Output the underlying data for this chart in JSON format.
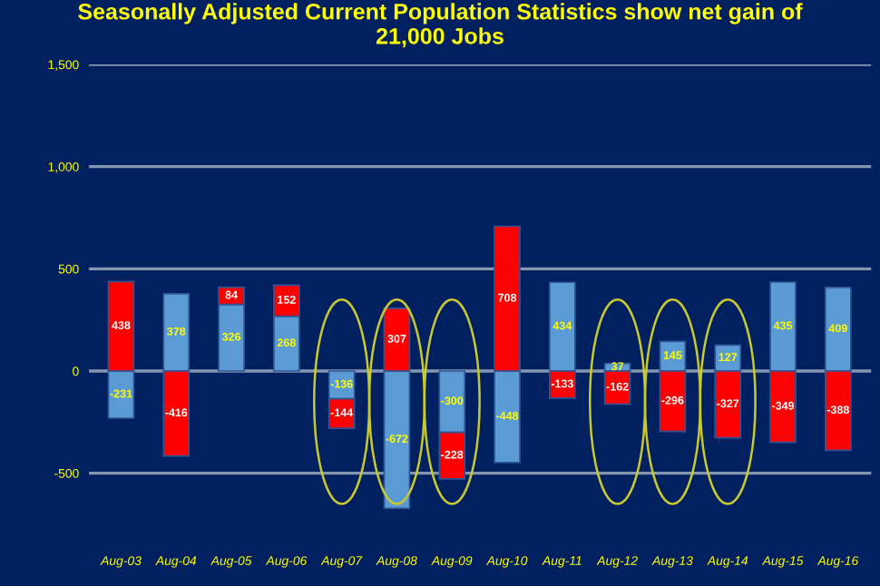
{
  "chart_data": {
    "type": "bar",
    "title": "Seasonally Adjusted Current Population Statistics show net gain of\n21,000 Jobs",
    "categories": [
      "Aug-03",
      "Aug-04",
      "Aug-05",
      "Aug-06",
      "Aug-07",
      "Aug-08",
      "Aug-09",
      "Aug-10",
      "Aug-11",
      "Aug-12",
      "Aug-13",
      "Aug-14",
      "Aug-15",
      "Aug-16"
    ],
    "series": [
      {
        "color": "#5b9bd5",
        "values": [
          -231,
          378,
          326,
          268,
          -136,
          -672,
          -300,
          -448,
          434,
          37,
          145,
          127,
          435,
          409
        ]
      },
      {
        "color": "#ff0000",
        "values": [
          438,
          -416,
          84,
          152,
          -144,
          307,
          -228,
          708,
          -133,
          -162,
          -296,
          -327,
          -349,
          -388
        ]
      }
    ],
    "stacked": true,
    "data_labels": true,
    "ylim": [
      -880,
      1500
    ],
    "yticks": [
      -500,
      0,
      500,
      {
        "value": 1000,
        "label": "1,000"
      },
      {
        "value": 1500,
        "label": "1,500"
      }
    ],
    "grid": "y",
    "legend": false
  }
}
